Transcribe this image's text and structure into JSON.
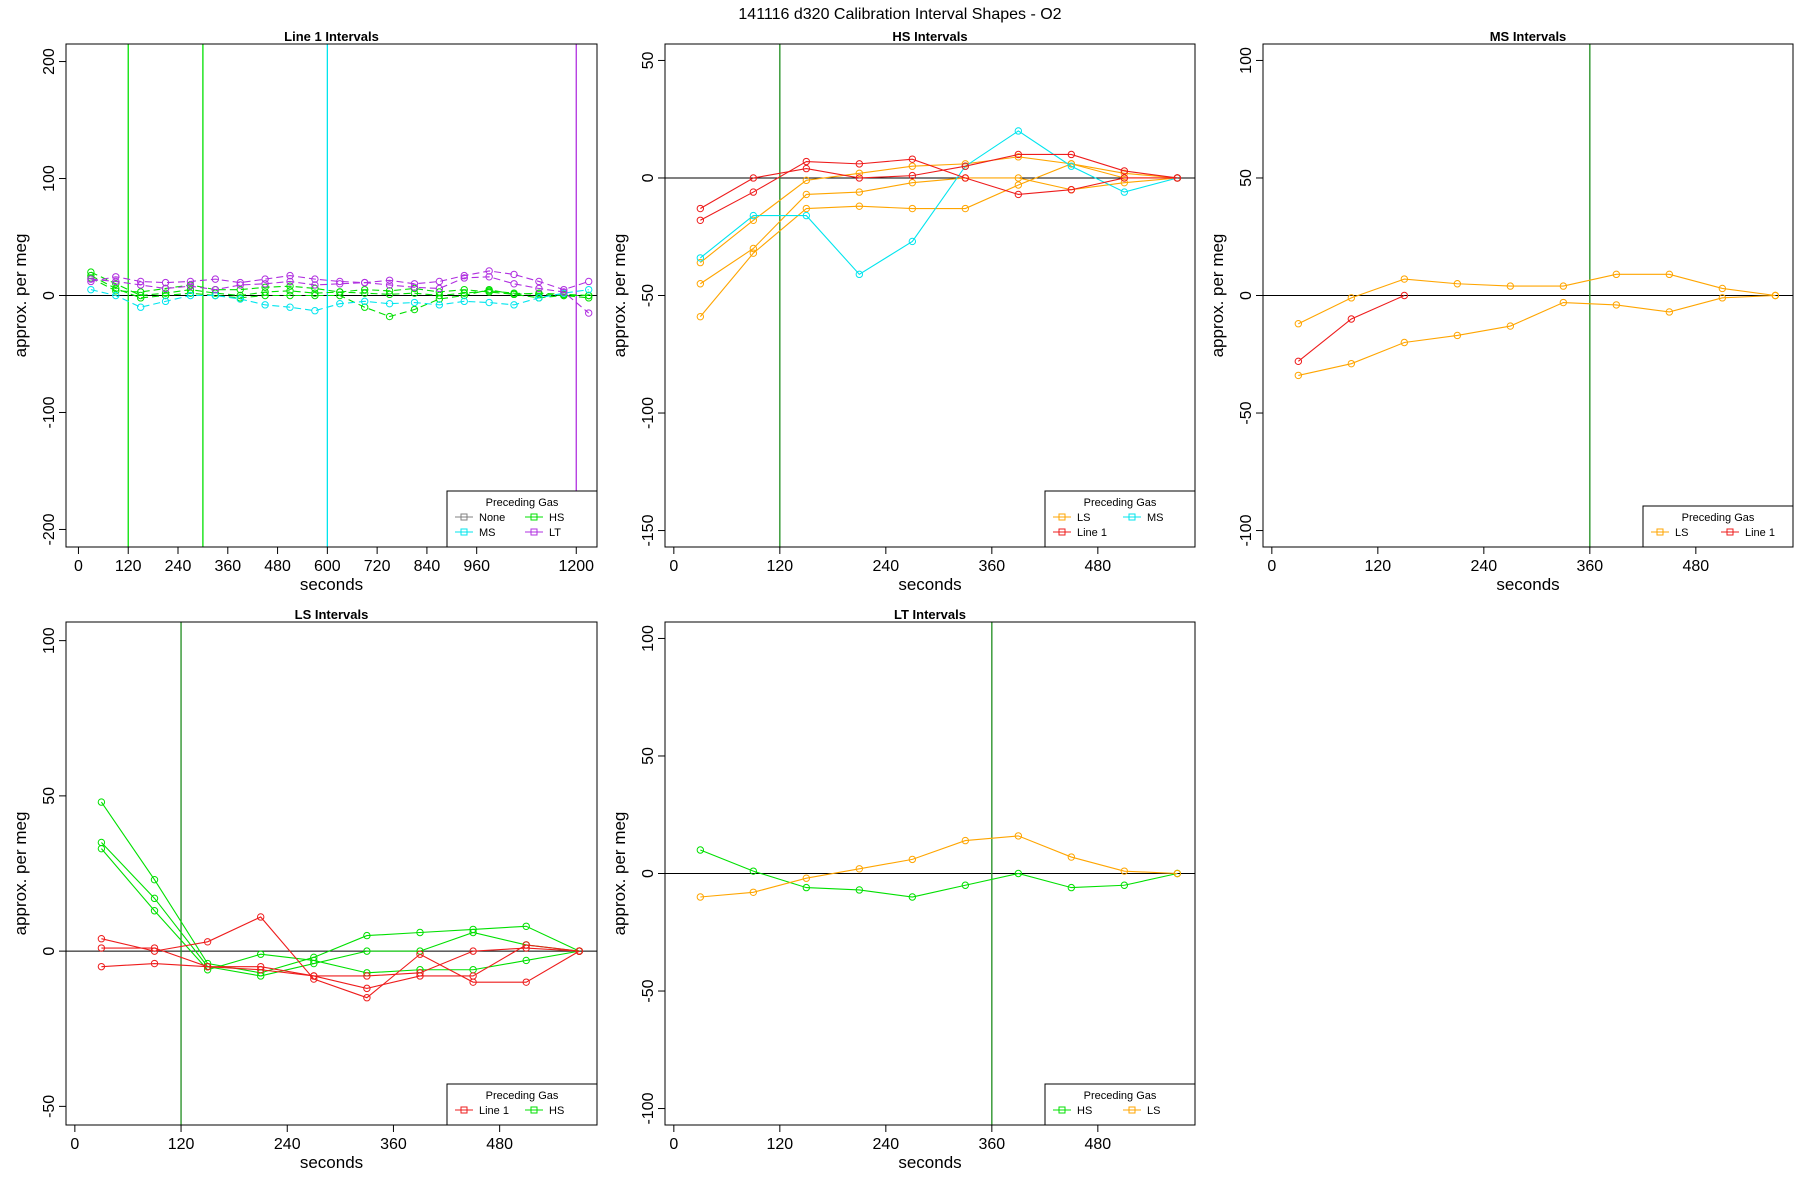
{
  "figure_title": "141116   d320   Calibration Interval Shapes - O2",
  "legend_title": "Preceding Gas",
  "colors": {
    "None": "#808080",
    "HS": "#00e000",
    "MS": "#00e5ee",
    "LT": "#b030e0",
    "LS": "#ffa500",
    "Line 1": "#ee1c1c",
    "axis": "#000000",
    "vline": "#1e8c1e"
  },
  "chart_data": [
    {
      "type": "line",
      "title": "Line 1 Intervals",
      "xlabel": "seconds",
      "ylabel": "approx. per meg",
      "xlim": [
        -30,
        1250
      ],
      "ylim": [
        -215,
        215
      ],
      "xticks": [
        0,
        120,
        240,
        360,
        480,
        600,
        720,
        840,
        960,
        1200
      ],
      "yticks": [
        -200,
        -100,
        0,
        100,
        200
      ],
      "vlines": [
        {
          "x": 120,
          "gas": "HS"
        },
        {
          "x": 300,
          "gas": "HS"
        },
        {
          "x": 600,
          "gas": "MS"
        },
        {
          "x": 1200,
          "gas": "LT"
        }
      ],
      "legend": {
        "position": "bottom-right",
        "ncol": 2,
        "entries": [
          "None",
          "HS",
          "MS",
          "LT"
        ]
      },
      "series": [
        {
          "name": "HS",
          "dashed": true,
          "x": [
            30,
            90,
            150,
            210,
            270,
            330,
            390,
            450,
            510,
            570,
            630,
            690,
            750,
            810,
            870,
            930,
            990,
            1050,
            1110,
            1170,
            1230
          ],
          "y": [
            20,
            10,
            0,
            2,
            5,
            2,
            0,
            3,
            4,
            2,
            3,
            2,
            1,
            2,
            0,
            2,
            4,
            2,
            1,
            0,
            -2
          ]
        },
        {
          "name": "HS",
          "dashed": true,
          "x": [
            30,
            90,
            150,
            210,
            270,
            330,
            390,
            450,
            510,
            570,
            630,
            690,
            750,
            810,
            870,
            930,
            990,
            1050,
            1110,
            1170,
            1230
          ],
          "y": [
            17,
            6,
            -2,
            0,
            2,
            0,
            -2,
            0,
            0,
            0,
            0,
            -10,
            -18,
            -12,
            -3,
            0,
            5,
            1,
            -2,
            0,
            0
          ]
        },
        {
          "name": "HS",
          "dashed": true,
          "x": [
            30,
            90,
            150,
            210,
            270,
            330,
            390,
            450,
            510,
            570,
            630,
            690,
            750,
            810,
            870,
            930,
            990,
            1050,
            1110,
            1170,
            1230
          ],
          "y": [
            15,
            4,
            3,
            6,
            9,
            5,
            5,
            7,
            8,
            6,
            3,
            5,
            4,
            6,
            3,
            5,
            3,
            1,
            2,
            1,
            0
          ]
        },
        {
          "name": "MS",
          "dashed": true,
          "x": [
            30,
            90,
            150,
            210,
            270,
            330,
            390,
            450,
            510,
            570,
            630,
            690,
            750,
            810,
            870,
            930,
            990,
            1050,
            1110,
            1170,
            1230
          ],
          "y": [
            5,
            0,
            -10,
            -5,
            0,
            0,
            -3,
            -8,
            -10,
            -13,
            -7,
            -5,
            -7,
            -6,
            -8,
            -5,
            -6,
            -8,
            -2,
            2,
            5
          ]
        },
        {
          "name": "LT",
          "dashed": true,
          "x": [
            30,
            90,
            150,
            210,
            270,
            330,
            390,
            450,
            510,
            570,
            630,
            690,
            750,
            810,
            870,
            930,
            990,
            1050,
            1110,
            1170,
            1230
          ],
          "y": [
            12,
            16,
            12,
            11,
            12,
            14,
            11,
            14,
            17,
            14,
            12,
            11,
            13,
            10,
            12,
            17,
            21,
            18,
            12,
            5,
            12
          ]
        },
        {
          "name": "LT",
          "dashed": true,
          "x": [
            30,
            90,
            150,
            210,
            270,
            330,
            390,
            450,
            510,
            570,
            630,
            690,
            750,
            810,
            870,
            930,
            990,
            1050,
            1110,
            1170,
            1230
          ],
          "y": [
            14,
            12,
            9,
            6,
            8,
            5,
            9,
            10,
            12,
            9,
            10,
            11,
            9,
            7,
            6,
            15,
            16,
            10,
            6,
            3,
            -15
          ]
        }
      ]
    },
    {
      "type": "line",
      "title": "HS Intervals",
      "xlabel": "seconds",
      "ylabel": "approx. per meg",
      "xlim": [
        -10,
        590
      ],
      "ylim": [
        -157,
        57
      ],
      "xticks": [
        0,
        120,
        240,
        360,
        480
      ],
      "yticks": [
        -150,
        -100,
        -50,
        0,
        50
      ],
      "vlines": [
        {
          "x": 120,
          "gas": "HS"
        }
      ],
      "legend": {
        "position": "bottom-right",
        "ncol": 2,
        "entries": [
          "LS",
          "MS",
          "Line 1"
        ]
      },
      "series": [
        {
          "name": "LS",
          "x": [
            30,
            90,
            150,
            210,
            270,
            330,
            390,
            450,
            510,
            570
          ],
          "y": [
            -59,
            -32,
            -13,
            -12,
            -13,
            -13,
            -3,
            6,
            2,
            0
          ]
        },
        {
          "name": "LS",
          "x": [
            30,
            90,
            150,
            210,
            270,
            330,
            390,
            450,
            510,
            570
          ],
          "y": [
            -45,
            -30,
            -7,
            -6,
            -2,
            0,
            0,
            -5,
            -2,
            0
          ]
        },
        {
          "name": "LS",
          "x": [
            30,
            90,
            150,
            210,
            270,
            330,
            390,
            450,
            510,
            570
          ],
          "y": [
            -36,
            -18,
            -1,
            2,
            5,
            6,
            9,
            6,
            0,
            0
          ]
        },
        {
          "name": "MS",
          "x": [
            30,
            90,
            150,
            210,
            270,
            330,
            390,
            450,
            510,
            570
          ],
          "y": [
            -34,
            -16,
            -16,
            -41,
            -27,
            5,
            20,
            5,
            -6,
            0
          ]
        },
        {
          "name": "Line 1",
          "x": [
            30,
            90,
            150,
            210,
            270,
            330,
            390,
            450,
            510,
            570
          ],
          "y": [
            -13,
            0,
            4,
            0,
            1,
            5,
            10,
            10,
            3,
            0
          ]
        },
        {
          "name": "Line 1",
          "x": [
            30,
            90,
            150,
            210,
            270,
            330,
            390,
            450,
            510,
            570
          ],
          "y": [
            -18,
            -6,
            7,
            6,
            8,
            0,
            -7,
            -5,
            0,
            0
          ]
        }
      ]
    },
    {
      "type": "line",
      "title": "MS Intervals",
      "xlabel": "seconds",
      "ylabel": "approx. per meg",
      "xlim": [
        -10,
        590
      ],
      "ylim": [
        -107,
        107
      ],
      "xticks": [
        0,
        120,
        240,
        360,
        480
      ],
      "yticks": [
        -100,
        -50,
        0,
        50,
        100
      ],
      "vlines": [
        {
          "x": 360,
          "gas": "HS"
        }
      ],
      "legend": {
        "position": "bottom-right",
        "ncol": 2,
        "entries": [
          "LS",
          "Line 1"
        ]
      },
      "series": [
        {
          "name": "LS",
          "x": [
            30,
            90,
            150,
            210,
            270,
            330,
            390,
            450,
            510,
            570
          ],
          "y": [
            -12,
            -1,
            7,
            5,
            4,
            4,
            9,
            9,
            3,
            0
          ]
        },
        {
          "name": "LS",
          "x": [
            30,
            90,
            150,
            210,
            270,
            330,
            390,
            450,
            510,
            570
          ],
          "y": [
            -34,
            -29,
            -20,
            -17,
            -13,
            -3,
            -4,
            -7,
            -1,
            0
          ]
        },
        {
          "name": "Line 1",
          "x": [
            30,
            90,
            150
          ],
          "y": [
            -28,
            -10,
            0
          ]
        }
      ]
    },
    {
      "type": "line",
      "title": "LS Intervals",
      "xlabel": "seconds",
      "ylabel": "approx. per meg",
      "xlim": [
        -10,
        590
      ],
      "ylim": [
        -56,
        106
      ],
      "xticks": [
        0,
        120,
        240,
        360,
        480
      ],
      "yticks": [
        -50,
        0,
        50,
        100
      ],
      "vlines": [
        {
          "x": 120,
          "gas": "HS"
        }
      ],
      "legend": {
        "position": "bottom-right",
        "ncol": 2,
        "entries": [
          "Line 1",
          "HS"
        ]
      },
      "series": [
        {
          "name": "HS",
          "x": [
            30,
            90,
            150,
            210,
            270,
            330,
            390,
            450,
            510,
            570
          ],
          "y": [
            48,
            23,
            -4,
            -7,
            -2,
            5,
            6,
            7,
            8,
            0
          ]
        },
        {
          "name": "HS",
          "x": [
            30,
            90,
            150,
            210,
            270,
            330,
            390,
            450,
            510,
            570
          ],
          "y": [
            35,
            17,
            -5,
            -8,
            -4,
            0,
            0,
            6,
            2,
            0
          ]
        },
        {
          "name": "HS",
          "x": [
            30,
            90,
            150,
            210,
            270,
            330,
            390,
            450,
            510,
            570
          ],
          "y": [
            33,
            13,
            -6,
            -1,
            -3,
            -7,
            -6,
            -6,
            -3,
            0
          ]
        },
        {
          "name": "Line 1",
          "x": [
            30,
            90,
            150,
            210,
            270,
            330,
            390,
            450,
            510,
            570
          ],
          "y": [
            4,
            0,
            3,
            11,
            -9,
            -15,
            -1,
            -10,
            -10,
            0
          ]
        },
        {
          "name": "Line 1",
          "x": [
            30,
            90,
            150,
            210,
            270,
            330,
            390,
            450,
            510,
            570
          ],
          "y": [
            1,
            1,
            -5,
            -5,
            -8,
            -12,
            -8,
            -8,
            2,
            0
          ]
        },
        {
          "name": "Line 1",
          "x": [
            30,
            90,
            150,
            210,
            270,
            330,
            390,
            450,
            510,
            570
          ],
          "y": [
            -5,
            -4,
            -5,
            -6,
            -8,
            -8,
            -7,
            0,
            1,
            0
          ]
        }
      ]
    },
    {
      "type": "line",
      "title": "LT Intervals",
      "xlabel": "seconds",
      "ylabel": "approx. per meg",
      "xlim": [
        -10,
        590
      ],
      "ylim": [
        -107,
        107
      ],
      "xticks": [
        0,
        120,
        240,
        360,
        480
      ],
      "yticks": [
        -100,
        -50,
        0,
        50,
        100
      ],
      "vlines": [
        {
          "x": 360,
          "gas": "HS"
        }
      ],
      "legend": {
        "position": "bottom-right",
        "ncol": 2,
        "entries": [
          "HS",
          "LS"
        ]
      },
      "series": [
        {
          "name": "HS",
          "x": [
            30,
            90,
            150,
            210,
            270,
            330,
            390,
            450,
            510,
            570
          ],
          "y": [
            10,
            1,
            -6,
            -7,
            -10,
            -5,
            0,
            -6,
            -5,
            0
          ]
        },
        {
          "name": "LS",
          "x": [
            30,
            90,
            150,
            210,
            270,
            330,
            390,
            450,
            510,
            570
          ],
          "y": [
            -10,
            -8,
            -2,
            2,
            6,
            14,
            16,
            7,
            1,
            0
          ]
        }
      ]
    }
  ]
}
